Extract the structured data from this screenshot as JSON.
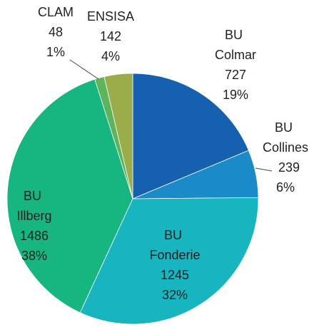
{
  "chart_data": {
    "type": "pie",
    "categories": [
      "BU Colmar",
      "BU Collines",
      "BU Fonderie",
      "BU Illberg",
      "CLAM",
      "ENSISA"
    ],
    "values": [
      727,
      239,
      1245,
      1486,
      48,
      142
    ],
    "percent_labels": [
      "19%",
      "6%",
      "32%",
      "38%",
      "1%",
      "4%"
    ],
    "colors": [
      "#1660b0",
      "#1a8ac8",
      "#17b5c0",
      "#17b580",
      "#5cb55a",
      "#9aad4a"
    ]
  }
}
